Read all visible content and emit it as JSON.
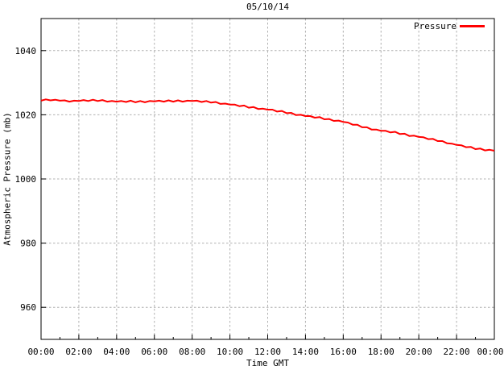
{
  "title": "05/10/14",
  "axes": {
    "y_label": "Atmospheric Pressure (mb)",
    "x_label": "Time GMT"
  },
  "legend": {
    "label": "Pressure",
    "position": "top-right"
  },
  "colors": {
    "line": "#ff0000",
    "grid": "#b0b0b0",
    "axis": "#000000",
    "background": "#ffffff",
    "text": "#000000"
  },
  "chart_data": {
    "type": "line",
    "title": "05/10/14",
    "xlabel": "Time GMT",
    "ylabel": "Atmospheric Pressure (mb)",
    "xlim_hours": [
      0,
      24
    ],
    "ylim": [
      950,
      1050
    ],
    "grid": true,
    "legend_position": "top-right",
    "x_major_tick_hours": [
      0,
      2,
      4,
      6,
      8,
      10,
      12,
      14,
      16,
      18,
      20,
      22,
      24
    ],
    "x_major_tick_labels": [
      "00:00",
      "02:00",
      "04:00",
      "06:00",
      "08:00",
      "10:00",
      "12:00",
      "14:00",
      "16:00",
      "18:00",
      "20:00",
      "22:00",
      "00:00"
    ],
    "x_minor_tick_hours": [
      1,
      3,
      5,
      7,
      9,
      11,
      13,
      15,
      17,
      19,
      21,
      23
    ],
    "y_tick_values": [
      960,
      980,
      1000,
      1020,
      1040
    ],
    "y_tick_labels": [
      "960",
      "980",
      "1000",
      "1020",
      "1040"
    ],
    "series": [
      {
        "name": "Pressure",
        "color": "#ff0000",
        "x_start_hour": 0,
        "x_step_hours": 0.25,
        "values_mb": [
          1024.4,
          1024.8,
          1024.5,
          1024.7,
          1024.4,
          1024.5,
          1024.1,
          1024.4,
          1024.3,
          1024.6,
          1024.3,
          1024.7,
          1024.3,
          1024.6,
          1024.1,
          1024.3,
          1024.1,
          1024.3,
          1024.0,
          1024.4,
          1023.9,
          1024.3,
          1023.9,
          1024.3,
          1024.2,
          1024.4,
          1024.1,
          1024.5,
          1024.1,
          1024.5,
          1024.1,
          1024.4,
          1024.3,
          1024.4,
          1024.0,
          1024.3,
          1023.8,
          1024.0,
          1023.4,
          1023.5,
          1023.2,
          1023.2,
          1022.7,
          1022.9,
          1022.2,
          1022.4,
          1021.8,
          1021.9,
          1021.6,
          1021.6,
          1021.0,
          1021.2,
          1020.5,
          1020.6,
          1019.9,
          1020.0,
          1019.6,
          1019.6,
          1019.1,
          1019.3,
          1018.6,
          1018.7,
          1018.1,
          1018.2,
          1017.8,
          1017.6,
          1016.9,
          1016.9,
          1016.1,
          1016.1,
          1015.4,
          1015.4,
          1015.0,
          1015.0,
          1014.5,
          1014.7,
          1014.0,
          1014.1,
          1013.4,
          1013.5,
          1013.1,
          1013.0,
          1012.4,
          1012.5,
          1011.8,
          1011.8,
          1011.1,
          1011.0,
          1010.6,
          1010.5,
          1009.9,
          1010.0,
          1009.3,
          1009.5,
          1008.9,
          1009.1,
          1008.8
        ]
      }
    ]
  }
}
